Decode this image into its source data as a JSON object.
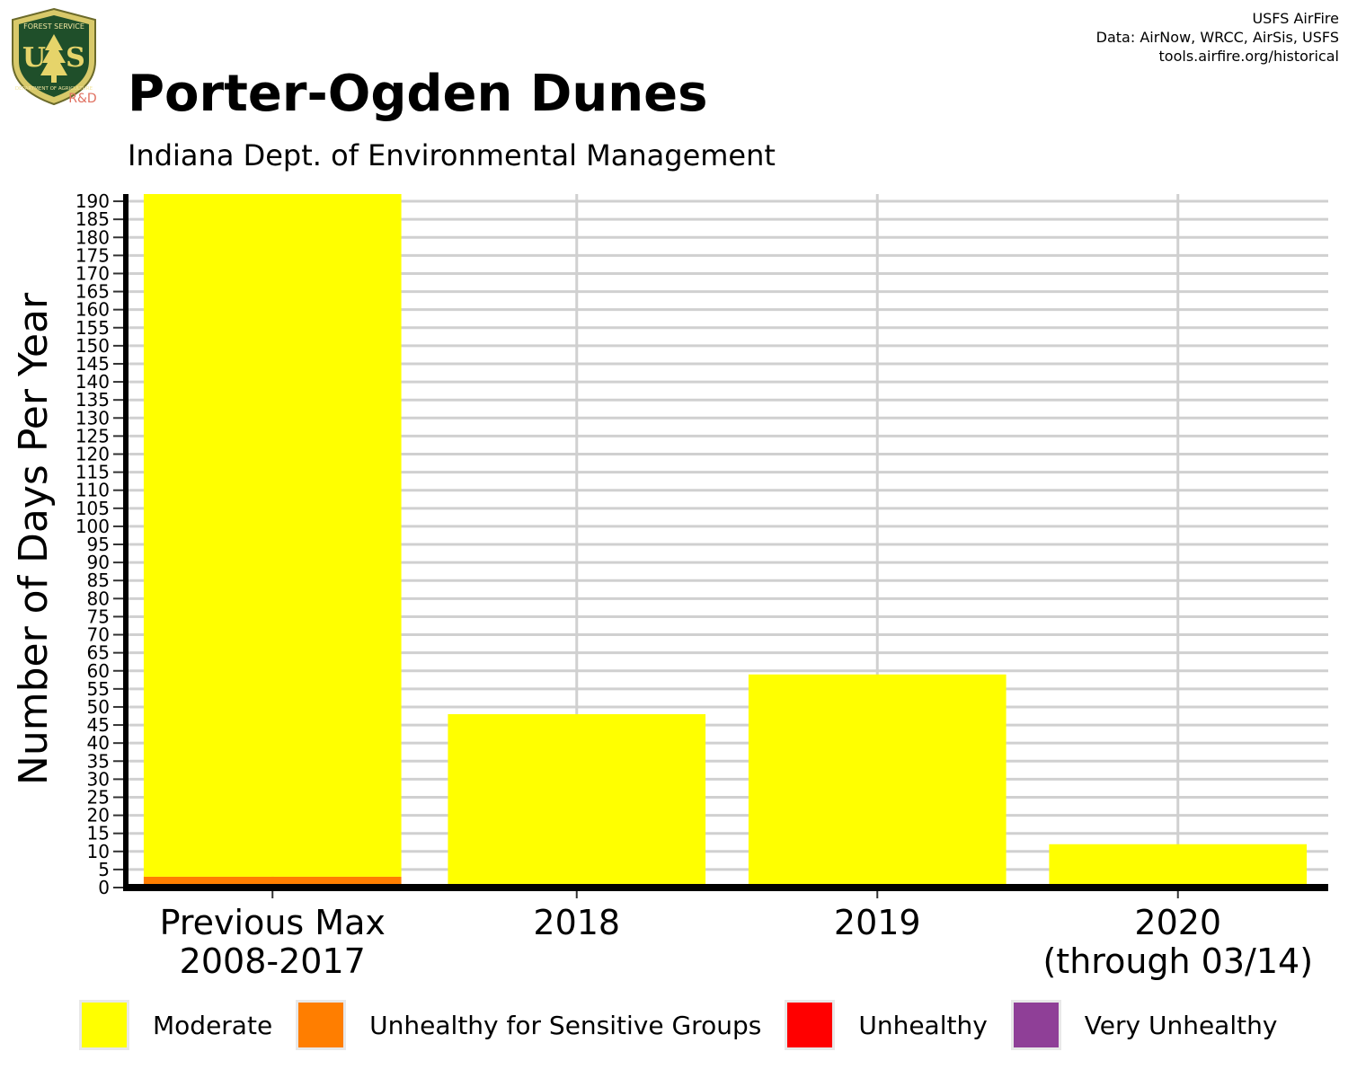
{
  "logo": {
    "badge_top_text": "FOREST SERVICE",
    "badge_letters": "US",
    "badge_bottom_text": "DEPARTMENT OF AGRICULTURE",
    "badge_tag": "R&D"
  },
  "credits": {
    "line1": "USFS AirFire",
    "line2": "Data: AirNow, WRCC, AirSis, USFS",
    "line3": "tools.airfire.org/historical"
  },
  "colors": {
    "moderate": "#ffff00",
    "usg": "#ff7e00",
    "unhealthy": "#ff0000",
    "very_unhealthy": "#8f3f97",
    "grid": "#d0d0d0",
    "axis": "#000000"
  },
  "chart_data": {
    "type": "bar",
    "stacked": true,
    "title": "Porter-Ogden Dunes",
    "subtitle": "Indiana Dept. of Environmental Management",
    "ylabel": "Number of Days Per Year",
    "xlabel": "",
    "ylim": [
      0,
      192
    ],
    "y_ticks": [
      0,
      5,
      10,
      15,
      20,
      25,
      30,
      35,
      40,
      45,
      50,
      55,
      60,
      65,
      70,
      75,
      80,
      85,
      90,
      95,
      100,
      105,
      110,
      115,
      120,
      125,
      130,
      135,
      140,
      145,
      150,
      155,
      160,
      165,
      170,
      175,
      180,
      185,
      190
    ],
    "categories": [
      [
        "Previous Max",
        "2008-2017"
      ],
      [
        "2018"
      ],
      [
        "2019"
      ],
      [
        "2020",
        "(through 03/14)"
      ]
    ],
    "series": [
      {
        "name": "Unhealthy for Sensitive Groups",
        "color": "#ff7e00",
        "values": [
          3,
          1,
          0,
          0
        ]
      },
      {
        "name": "Moderate",
        "color": "#ffff00",
        "values": [
          189,
          47,
          59,
          12
        ]
      },
      {
        "name": "Unhealthy",
        "color": "#ff0000",
        "values": [
          0,
          0,
          0,
          0
        ]
      },
      {
        "name": "Very Unhealthy",
        "color": "#8f3f97",
        "values": [
          0,
          0,
          0,
          0
        ]
      }
    ],
    "legend": {
      "position": "bottom",
      "entries": [
        {
          "label": "Moderate",
          "color": "#ffff00"
        },
        {
          "label": "Unhealthy for Sensitive Groups",
          "color": "#ff7e00"
        },
        {
          "label": "Unhealthy",
          "color": "#ff0000"
        },
        {
          "label": "Very Unhealthy",
          "color": "#8f3f97"
        }
      ]
    },
    "grid": true
  }
}
